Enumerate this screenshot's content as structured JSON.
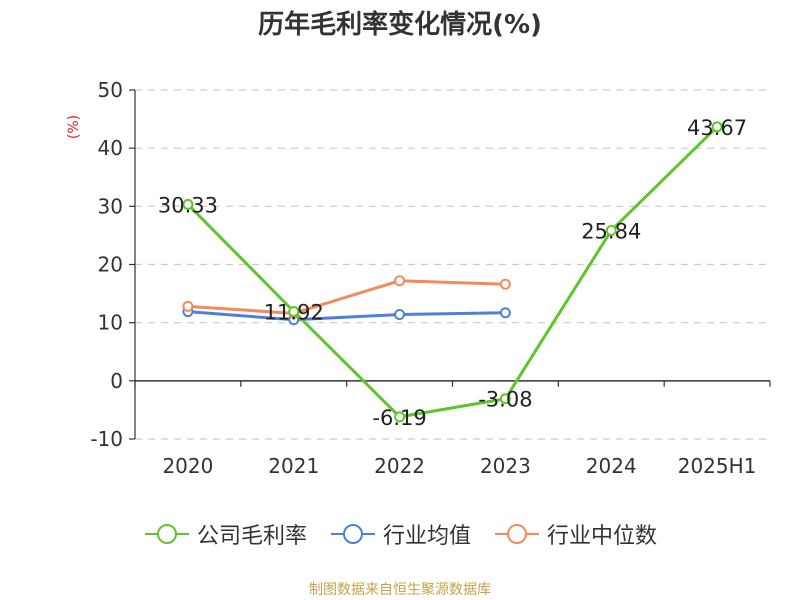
{
  "title": "历年毛利率变化情况(%)",
  "source": "制图数据来自恒生聚源数据库",
  "chart_data": {
    "type": "line",
    "ylabel": "(%)",
    "ylim": [
      -10,
      50
    ],
    "yticks": [
      -10,
      0,
      10,
      20,
      30,
      40,
      50
    ],
    "grid": "horizontal dashed",
    "legend_position": "bottom",
    "categories": [
      "2020",
      "2021",
      "2022",
      "2023",
      "2024",
      "2025H1"
    ],
    "series": [
      {
        "name": "公司毛利率",
        "color": "#5cc62b",
        "values": [
          30.33,
          11.92,
          -6.19,
          -3.08,
          25.84,
          43.67
        ],
        "labels": [
          "30.33",
          "11.92",
          "-6.19",
          "-3.08",
          "25.84",
          "43.67"
        ]
      },
      {
        "name": "行业均值",
        "color": "#4f7fdc",
        "values": [
          11.9,
          10.5,
          11.4,
          11.7,
          null,
          null
        ]
      },
      {
        "name": "行业中位数",
        "color": "#f38a5a",
        "values": [
          12.8,
          11.6,
          17.2,
          16.6,
          null,
          null
        ]
      }
    ]
  }
}
